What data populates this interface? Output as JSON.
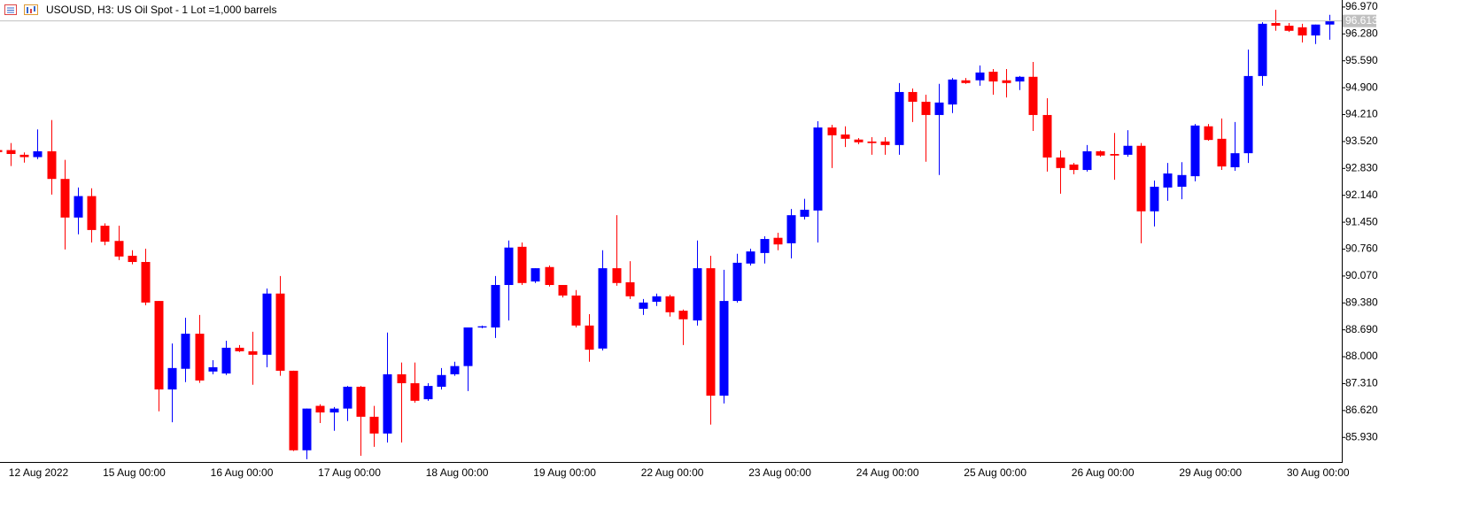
{
  "chart_data": {
    "type": "candlestick",
    "title": "USOUSD, H3:  US Oil Spot - 1 Lot =1,000 barrels",
    "categories": [
      "12 Aug 2022",
      null,
      null,
      null,
      null,
      null,
      null,
      "15 Aug 00:00",
      null,
      null,
      null,
      null,
      null,
      null,
      null,
      "16 Aug 00:00",
      null,
      null,
      null,
      null,
      null,
      null,
      null,
      "17 Aug 00:00",
      null,
      null,
      null,
      null,
      null,
      null,
      null,
      "18 Aug 00:00",
      null,
      null,
      null,
      null,
      null,
      null,
      null,
      "19 Aug 00:00",
      null,
      null,
      null,
      null,
      null,
      null,
      null,
      "22 Aug 00:00",
      null,
      null,
      null,
      null,
      null,
      null,
      null,
      "23 Aug 00:00",
      null,
      null,
      null,
      null,
      null,
      null,
      null,
      "24 Aug 00:00",
      null,
      null,
      null,
      null,
      null,
      null,
      null,
      "25 Aug 00:00",
      null,
      null,
      null,
      null,
      null,
      null,
      null,
      "26 Aug 00:00",
      null,
      null,
      null,
      null,
      null,
      null,
      null,
      "29 Aug 00:00",
      null,
      null,
      null,
      null,
      null,
      null,
      null,
      "30 Aug 00:00",
      null,
      null,
      null,
      null
    ],
    "open": [
      93.3,
      93.3,
      93.18,
      93.12,
      93.27,
      92.56,
      91.57,
      92.12,
      91.36,
      90.97,
      90.59,
      90.43,
      89.43,
      87.16,
      87.69,
      88.59,
      87.62,
      87.57,
      88.23,
      88.14,
      88.05,
      89.62,
      87.64,
      85.6,
      86.74,
      86.57,
      86.67,
      87.23,
      86.46,
      86.03,
      87.55,
      87.32,
      86.91,
      87.23,
      87.55,
      87.76,
      88.75,
      88.75,
      89.84,
      90.82,
      89.93,
      90.3,
      89.84,
      89.57,
      88.8,
      88.21,
      90.27,
      89.91,
      89.23,
      89.41,
      89.55,
      89.18,
      88.93,
      90.27,
      87.0,
      89.43,
      90.39,
      90.66,
      91.05,
      90.91,
      91.59,
      91.75,
      93.88,
      93.7,
      93.57,
      93.52,
      93.52,
      93.43,
      94.79,
      94.54,
      94.2,
      94.47,
      95.09,
      95.09,
      95.31,
      95.09,
      95.06,
      95.18,
      94.2,
      93.11,
      92.93,
      92.79,
      93.27,
      93.2,
      93.18,
      93.41,
      91.73,
      92.34,
      92.36,
      92.63,
      93.91,
      93.59,
      92.86,
      93.22,
      95.2,
      96.56,
      96.49,
      96.45,
      96.24,
      96.52
    ],
    "high": [
      93.35,
      93.48,
      93.24,
      93.83,
      94.07,
      93.05,
      92.34,
      92.32,
      91.42,
      91.36,
      90.73,
      90.77,
      89.43,
      88.34,
      89.0,
      89.07,
      87.91,
      88.41,
      88.3,
      88.64,
      89.75,
      90.07,
      87.64,
      86.67,
      86.78,
      86.71,
      87.25,
      87.25,
      86.74,
      88.62,
      87.85,
      87.85,
      87.32,
      87.71,
      87.87,
      88.75,
      88.8,
      90.07,
      90.98,
      90.93,
      90.27,
      90.34,
      89.84,
      89.71,
      89.09,
      90.73,
      91.63,
      90.45,
      89.48,
      89.62,
      89.59,
      89.21,
      90.98,
      90.59,
      90.23,
      90.64,
      90.77,
      91.09,
      91.18,
      91.79,
      92.05,
      94.04,
      93.95,
      93.91,
      93.61,
      93.63,
      93.63,
      95.02,
      94.88,
      94.72,
      95.0,
      95.15,
      95.15,
      95.47,
      95.38,
      95.38,
      95.2,
      95.56,
      94.63,
      93.29,
      92.97,
      93.43,
      93.29,
      93.74,
      93.81,
      93.48,
      92.52,
      92.97,
      92.99,
      93.97,
      93.97,
      94.11,
      94.02,
      95.88,
      96.58,
      96.9,
      96.56,
      96.54,
      96.52,
      96.77
    ],
    "low": [
      93.25,
      92.89,
      92.98,
      93.07,
      92.16,
      90.75,
      91.14,
      90.93,
      90.86,
      90.48,
      90.37,
      89.32,
      86.6,
      86.32,
      87.35,
      87.33,
      87.55,
      87.53,
      88.12,
      87.28,
      87.73,
      87.51,
      85.58,
      85.37,
      86.3,
      86.1,
      86.35,
      85.46,
      85.69,
      85.8,
      85.8,
      86.82,
      86.87,
      87.16,
      87.51,
      87.12,
      88.73,
      88.48,
      88.93,
      89.84,
      89.89,
      89.8,
      89.52,
      88.75,
      87.87,
      88.16,
      89.82,
      89.48,
      89.07,
      89.3,
      89.03,
      88.3,
      88.8,
      86.26,
      86.8,
      89.39,
      90.34,
      90.39,
      90.73,
      90.52,
      91.52,
      90.93,
      92.84,
      93.38,
      93.45,
      93.18,
      93.18,
      93.18,
      94.02,
      93.0,
      92.66,
      94.25,
      95.0,
      94.95,
      94.72,
      94.65,
      94.84,
      93.79,
      92.75,
      92.18,
      92.68,
      92.75,
      93.13,
      92.54,
      93.13,
      90.91,
      91.34,
      92.0,
      92.04,
      92.5,
      93.54,
      92.79,
      92.77,
      92.97,
      94.95,
      96.36,
      96.33,
      96.06,
      96.02,
      96.13
    ],
    "close": [
      93.25,
      93.2,
      93.12,
      93.27,
      92.56,
      91.57,
      92.12,
      91.25,
      90.95,
      90.57,
      90.43,
      89.39,
      87.16,
      87.71,
      88.59,
      87.39,
      87.73,
      88.23,
      88.14,
      88.05,
      89.62,
      87.64,
      85.6,
      86.67,
      86.57,
      86.67,
      87.23,
      86.46,
      86.03,
      87.55,
      87.32,
      86.87,
      87.25,
      87.53,
      87.76,
      88.75,
      88.78,
      89.84,
      90.8,
      89.89,
      90.27,
      89.84,
      89.57,
      88.8,
      88.18,
      90.27,
      89.89,
      89.55,
      89.39,
      89.55,
      89.14,
      88.96,
      90.27,
      87.0,
      89.43,
      90.41,
      90.7,
      91.02,
      90.88,
      91.63,
      91.77,
      93.88,
      93.68,
      93.59,
      93.5,
      93.48,
      93.43,
      94.79,
      94.54,
      94.2,
      94.52,
      95.11,
      95.02,
      95.29,
      95.06,
      95.02,
      95.18,
      94.2,
      93.11,
      92.84,
      92.79,
      93.27,
      93.16,
      93.16,
      93.41,
      91.73,
      92.36,
      92.7,
      92.66,
      93.93,
      93.56,
      92.88,
      93.22,
      95.2,
      96.54,
      96.49,
      96.36,
      96.24,
      96.52,
      96.61
    ],
    "up_color": "#0000ff",
    "down_color": "#ff0000",
    "last_price": 96.613,
    "ylim": [
      85.3,
      97.15
    ],
    "yticks": [
      {
        "value": 96.97,
        "label": "96.970"
      },
      {
        "value": 96.28,
        "label": "96.280"
      },
      {
        "value": 95.59,
        "label": "95.590"
      },
      {
        "value": 94.9,
        "label": "94.900"
      },
      {
        "value": 94.21,
        "label": "94.210"
      },
      {
        "value": 93.52,
        "label": "93.520"
      },
      {
        "value": 92.83,
        "label": "92.830"
      },
      {
        "value": 92.14,
        "label": "92.140"
      },
      {
        "value": 91.45,
        "label": "91.450"
      },
      {
        "value": 90.76,
        "label": "90.760"
      },
      {
        "value": 90.07,
        "label": "90.070"
      },
      {
        "value": 89.38,
        "label": "89.380"
      },
      {
        "value": 88.69,
        "label": "88.690"
      },
      {
        "value": 88.0,
        "label": "88.000"
      },
      {
        "value": 87.31,
        "label": "87.310"
      },
      {
        "value": 86.62,
        "label": "86.620"
      },
      {
        "value": 85.93,
        "label": "85.930"
      }
    ],
    "grid": false
  }
}
